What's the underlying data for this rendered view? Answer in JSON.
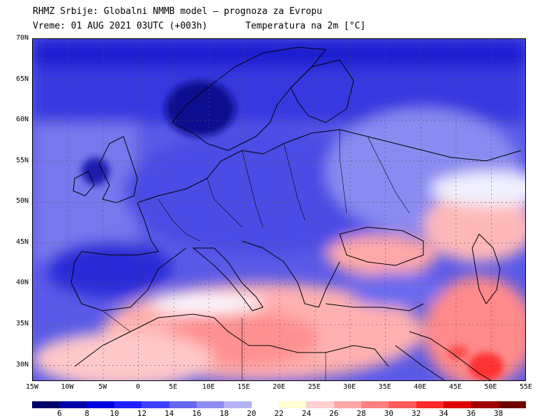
{
  "header": {
    "line1": "RHMZ Srbije: Globalni NMMB model – prognoza za Evropu",
    "line2": "Vreme: 01 AUG 2021 03UTC (+003h)",
    "line2b": "Temperatura na 2m [°C]"
  },
  "map": {
    "lat_labels": [
      "70N",
      "65N",
      "60N",
      "55N",
      "50N",
      "45N",
      "40N",
      "35N",
      "30N"
    ],
    "lon_labels": [
      "15W",
      "10W",
      "5W",
      "0",
      "5E",
      "10E",
      "15E",
      "20E",
      "25E",
      "30E",
      "35E",
      "40E",
      "45E",
      "50E",
      "55E"
    ],
    "lat_range": [
      28,
      70
    ],
    "lon_range": [
      -15,
      55
    ]
  },
  "legend": {
    "labels": [
      "6",
      "8",
      "10",
      "12",
      "14",
      "16",
      "18",
      "20",
      "22",
      "24",
      "26",
      "28",
      "30",
      "32",
      "34",
      "36",
      "38"
    ],
    "colors": [
      "#00006a",
      "#0000a8",
      "#0000e0",
      "#2020ff",
      "#4040ff",
      "#6666ee",
      "#8c8cf0",
      "#b4b4f4",
      "#ffffff",
      "#ffffd0",
      "#ffd0d0",
      "#ffa8a8",
      "#ff8080",
      "#ff5a5a",
      "#ff2a2a",
      "#e00000",
      "#a00000",
      "#700000"
    ]
  }
}
